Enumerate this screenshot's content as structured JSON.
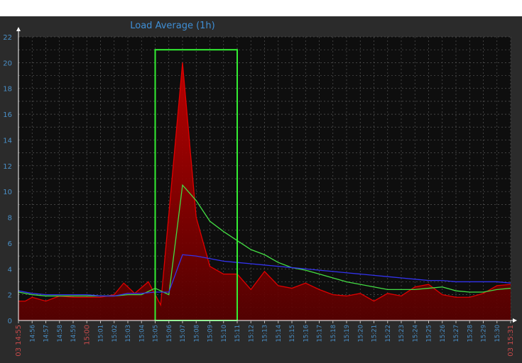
{
  "chart_data": {
    "type": "area",
    "title": "Load Average  (1h)",
    "ylim": [
      0,
      22
    ],
    "yticks": [
      0,
      2,
      4,
      6,
      8,
      10,
      12,
      14,
      16,
      18,
      20,
      22
    ],
    "x_tick_labels": [
      "03 14:55",
      "14:56",
      "14:57",
      "14:58",
      "14:59",
      "15:00",
      "15:01",
      "15:02",
      "15:03",
      "15:04",
      "15:05",
      "15:06",
      "15:07",
      "15:08",
      "15:09",
      "15:10",
      "15:11",
      "15:12",
      "15:13",
      "15:14",
      "15:15",
      "15:16",
      "15:17",
      "15:18",
      "15:19",
      "15:20",
      "15:21",
      "15:22",
      "15:23",
      "15:24",
      "15:25",
      "15:26",
      "15:27",
      "15:28",
      "15:29",
      "15:30",
      "03 15:31"
    ],
    "x_tick_labels_visible": [
      "03 14:55",
      "14:56",
      "14:57",
      "14:58",
      "14:59",
      "15:00",
      "15:01",
      "15:02",
      "15:03",
      "15:04",
      "15:05",
      "15:06",
      "15:07",
      "15:08",
      "15:09",
      "15:10",
      "15:11",
      "15:12",
      "15:13",
      "15:14",
      "15:15",
      "15:16",
      "15:17",
      "15:18",
      "15:19",
      "15:20",
      "15:21",
      "15:22",
      "15:23",
      "15:24",
      "15:25",
      "15:26",
      "15:27",
      "15:28",
      "15:29",
      "15:30",
      "03 15:31"
    ],
    "x_tick_labels_highlight": [
      "03 14:55",
      "15:00",
      "03 15:31"
    ],
    "x_minutes": [
      0,
      1,
      2,
      3,
      4,
      5,
      6,
      7,
      8,
      9,
      10,
      11,
      12,
      13,
      14,
      15,
      16,
      17,
      18,
      19,
      20,
      21,
      22,
      23,
      24,
      25,
      26,
      27,
      28,
      29,
      30,
      31,
      32,
      33,
      34,
      35,
      36
    ],
    "x_range_minutes": [
      0,
      36
    ],
    "series": [
      {
        "color": "#cc0000",
        "fill": true,
        "x": [
          0,
          0.5,
          1,
          2,
          3,
          4,
          5,
          6,
          7,
          7.7,
          8.5,
          9.5,
          10.4,
          12,
          13,
          14,
          15,
          16,
          17,
          18,
          19,
          20,
          21,
          22,
          23,
          24,
          25,
          26,
          27,
          28,
          29,
          30,
          31,
          32,
          33,
          34,
          35,
          36
        ],
        "values": [
          1.5,
          1.5,
          1.8,
          1.5,
          1.9,
          1.8,
          1.8,
          1.8,
          2.0,
          2.9,
          2.1,
          3.0,
          1.2,
          20.0,
          8.0,
          4.2,
          3.6,
          3.6,
          2.4,
          3.8,
          2.7,
          2.5,
          2.9,
          2.4,
          2.0,
          1.9,
          2.1,
          1.5,
          2.1,
          1.9,
          2.6,
          2.8,
          2.0,
          1.8,
          1.8,
          2.1,
          2.7,
          2.8
        ]
      },
      {
        "color": "#44dd44",
        "fill": false,
        "x": [
          0,
          1,
          2,
          3,
          4,
          5,
          6,
          7,
          8,
          9,
          10,
          11,
          12,
          13,
          14,
          15,
          16,
          17,
          18,
          19,
          20,
          21,
          22,
          23,
          24,
          25,
          26,
          27,
          28,
          29,
          30,
          31,
          32,
          33,
          34,
          35,
          36
        ],
        "values": [
          2.2,
          2.0,
          1.9,
          1.9,
          1.9,
          1.9,
          1.9,
          1.9,
          2.0,
          2.0,
          2.5,
          2.0,
          10.5,
          9.3,
          7.7,
          6.9,
          6.2,
          5.5,
          5.1,
          4.5,
          4.1,
          3.9,
          3.6,
          3.3,
          3.0,
          2.8,
          2.6,
          2.4,
          2.4,
          2.4,
          2.5,
          2.6,
          2.3,
          2.2,
          2.2,
          2.4,
          2.5
        ]
      },
      {
        "color": "#3333ee",
        "fill": false,
        "x": [
          0,
          1,
          2,
          3,
          4,
          5,
          6,
          7,
          8,
          9,
          10,
          11,
          12,
          13,
          14,
          15,
          16,
          17,
          18,
          19,
          20,
          21,
          22,
          23,
          24,
          25,
          26,
          27,
          28,
          29,
          30,
          31,
          32,
          33,
          34,
          35,
          36
        ],
        "values": [
          2.3,
          2.1,
          2.0,
          2.0,
          2.0,
          2.0,
          1.9,
          1.9,
          2.1,
          2.1,
          2.2,
          2.2,
          5.1,
          5.0,
          4.8,
          4.6,
          4.5,
          4.4,
          4.3,
          4.2,
          4.1,
          4.0,
          3.9,
          3.8,
          3.7,
          3.6,
          3.5,
          3.4,
          3.3,
          3.2,
          3.1,
          3.1,
          3.0,
          3.0,
          3.0,
          3.0,
          2.9
        ]
      }
    ],
    "highlight_box": {
      "x_start": 10,
      "x_end": 16,
      "y_start": 0,
      "y_end": 21,
      "color": "#33ee33"
    },
    "grid": true,
    "legend": "none"
  },
  "colors": {
    "panel_bg": "#2b2b2b",
    "plot_bg": "#0e0e0e",
    "grid": "#555555",
    "tick_blue": "#4a90c8",
    "tick_red": "#c84a4a",
    "title": "#3f8fd6"
  }
}
